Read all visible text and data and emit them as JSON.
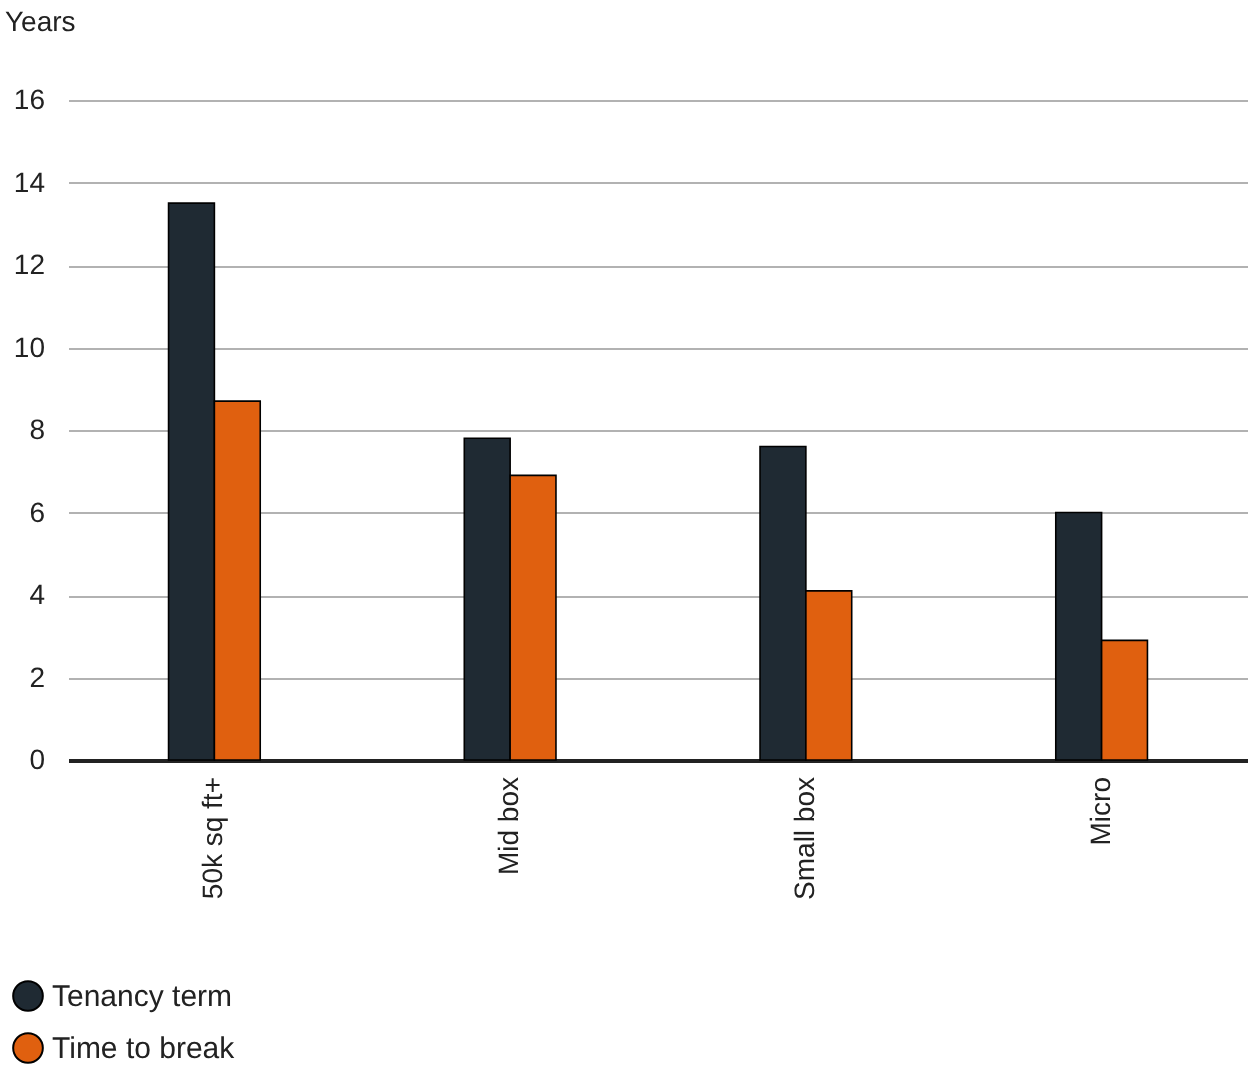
{
  "chart_data": {
    "type": "bar",
    "ylabel": "Years",
    "categories": [
      "50k sq ft+",
      "Mid box",
      "Small box",
      "Micro"
    ],
    "series": [
      {
        "name": "Tenancy term",
        "color": "#1f2a33",
        "values": [
          13.5,
          7.8,
          7.6,
          6.0
        ]
      },
      {
        "name": "Time to break",
        "color": "#e0600f",
        "values": [
          8.7,
          6.9,
          4.1,
          2.9
        ]
      }
    ],
    "ylim": [
      0,
      16
    ],
    "yticks": [
      0,
      2,
      4,
      6,
      8,
      10,
      12,
      14,
      16
    ],
    "grid": "y",
    "legend": "bottom left"
  }
}
